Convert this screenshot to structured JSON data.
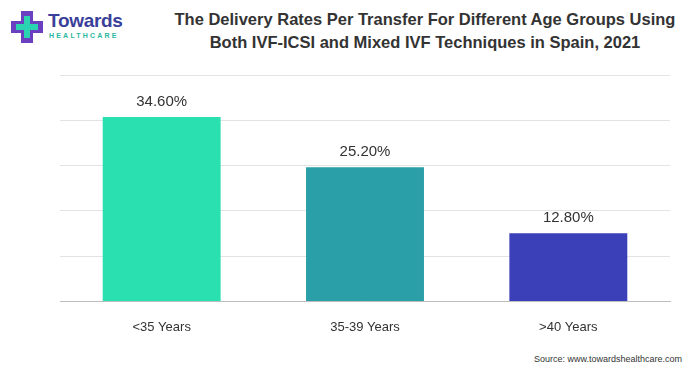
{
  "chart_data": {
    "type": "bar",
    "title": [
      "The Delivery Rates Per Transfer For Different Age Groups Using",
      "Both IVF-ICSI and Mixed IVF Techniques in Spain, 2021"
    ],
    "categories": [
      "<35 Years",
      "35-39 Years",
      ">40 Years"
    ],
    "values": [
      34.6,
      25.2,
      12.8
    ],
    "value_labels": [
      "34.60%",
      "25.20%",
      "12.80%"
    ],
    "colors": [
      "#2be0b0",
      "#2a9fa8",
      "#3b3fb8"
    ],
    "ylim": [
      0,
      42.5
    ],
    "yticks": [
      0,
      8.5,
      17,
      25.5,
      34,
      42.5
    ],
    "grid": true,
    "data_labels": true,
    "tick_labels": "x"
  },
  "logo": {
    "name": "Towards",
    "tagline": "HEALTHCARE"
  },
  "source": "Source: www.towardshealthcare.com"
}
